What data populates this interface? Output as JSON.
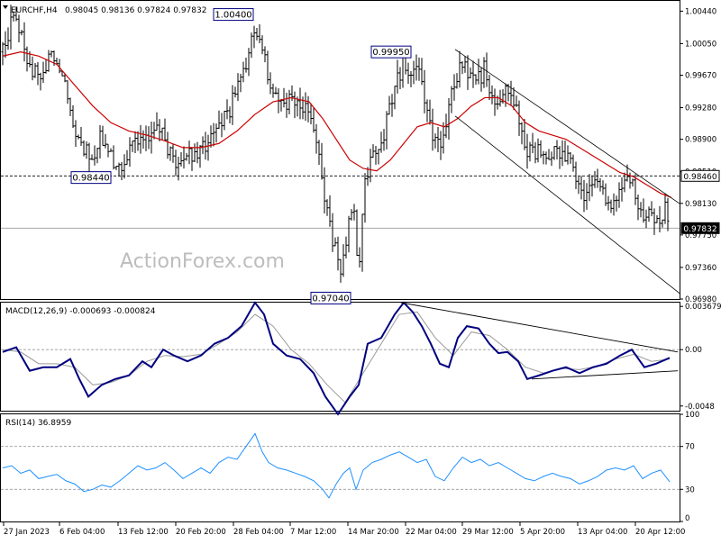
{
  "header": {
    "symbol": "EURCHF,H4",
    "ohlc": "0.98045 0.98136 0.97824 0.97832"
  },
  "watermark": "ActionForex.com",
  "chart_data": [
    {
      "type": "candlestick",
      "title": "EURCHF,H4",
      "ylim": [
        0.9698,
        1.0052
      ],
      "y_ticks": [
        "1.00440",
        "1.00050",
        "0.99670",
        "0.99280",
        "0.98900",
        "0.98510",
        "0.98130",
        "0.97750",
        "0.97360",
        "0.96980"
      ],
      "x_ticks": [
        "27 Jan 2023",
        "6 Feb 04:00",
        "13 Feb 12:00",
        "20 Feb 20:00",
        "28 Feb 04:00",
        "7 Mar 12:00",
        "14 Mar 20:00",
        "22 Mar 04:00",
        "29 Mar 12:00",
        "5 Apr 20:00",
        "13 Apr 04:00",
        "20 Apr 12:00"
      ],
      "price_path": [
        [
          0,
          0.9995
        ],
        [
          10,
          1.003
        ],
        [
          20,
          1.002
        ],
        [
          30,
          0.9975
        ],
        [
          40,
          0.9965
        ],
        [
          50,
          0.9985
        ],
        [
          60,
          0.999
        ],
        [
          70,
          0.996
        ],
        [
          80,
          0.9905
        ],
        [
          90,
          0.988
        ],
        [
          100,
          0.987
        ],
        [
          110,
          0.9895
        ],
        [
          120,
          0.987
        ],
        [
          130,
          0.986
        ],
        [
          140,
          0.9875
        ],
        [
          150,
          0.9895
        ],
        [
          160,
          0.9885
        ],
        [
          170,
          0.99
        ],
        [
          180,
          0.989
        ],
        [
          190,
          0.9865
        ],
        [
          200,
          0.9865
        ],
        [
          210,
          0.987
        ],
        [
          220,
          0.988
        ],
        [
          230,
          0.989
        ],
        [
          240,
          0.9905
        ],
        [
          250,
          0.992
        ],
        [
          260,
          0.9955
        ],
        [
          270,
          0.998
        ],
        [
          280,
          1.0025
        ],
        [
          288,
          1.0
        ],
        [
          295,
          0.996
        ],
        [
          305,
          0.994
        ],
        [
          315,
          0.9935
        ],
        [
          325,
          0.9935
        ],
        [
          335,
          0.9925
        ],
        [
          345,
          0.99
        ],
        [
          352,
          0.986
        ],
        [
          360,
          0.98
        ],
        [
          368,
          0.976
        ],
        [
          375,
          0.973
        ],
        [
          382,
          0.978
        ],
        [
          390,
          0.981
        ],
        [
          395,
          0.972
        ],
        [
          400,
          0.983
        ],
        [
          408,
          0.987
        ],
        [
          415,
          0.987
        ],
        [
          422,
          0.9895
        ],
        [
          430,
          0.993
        ],
        [
          438,
          0.9965
        ],
        [
          445,
          0.998
        ],
        [
          452,
          0.996
        ],
        [
          460,
          0.9985
        ],
        [
          468,
          0.993
        ],
        [
          475,
          0.99
        ],
        [
          482,
          0.988
        ],
        [
          490,
          0.989
        ],
        [
          498,
          0.994
        ],
        [
          505,
          0.997
        ],
        [
          512,
          0.9975
        ],
        [
          520,
          0.997
        ],
        [
          527,
          0.996
        ],
        [
          535,
          0.9975
        ],
        [
          542,
          0.994
        ],
        [
          550,
          0.993
        ],
        [
          557,
          0.9945
        ],
        [
          565,
          0.995
        ],
        [
          572,
          0.991
        ],
        [
          580,
          0.988
        ],
        [
          588,
          0.987
        ],
        [
          595,
          0.9875
        ],
        [
          605,
          0.987
        ],
        [
          615,
          0.988
        ],
        [
          622,
          0.9875
        ],
        [
          630,
          0.986
        ],
        [
          638,
          0.9845
        ],
        [
          645,
          0.982
        ],
        [
          652,
          0.983
        ],
        [
          660,
          0.9835
        ],
        [
          668,
          0.982
        ],
        [
          675,
          0.981
        ],
        [
          682,
          0.9825
        ],
        [
          690,
          0.984
        ],
        [
          698,
          0.9835
        ],
        [
          705,
          0.9815
        ],
        [
          712,
          0.9795
        ],
        [
          720,
          0.98
        ],
        [
          728,
          0.979
        ],
        [
          735,
          0.9805
        ],
        [
          740,
          0.98
        ]
      ],
      "ma_path": [
        [
          0,
          0.999
        ],
        [
          20,
          0.9995
        ],
        [
          40,
          0.999
        ],
        [
          60,
          0.998
        ],
        [
          80,
          0.9955
        ],
        [
          100,
          0.993
        ],
        [
          120,
          0.991
        ],
        [
          140,
          0.99
        ],
        [
          160,
          0.9895
        ],
        [
          180,
          0.9888
        ],
        [
          200,
          0.988
        ],
        [
          220,
          0.988
        ],
        [
          240,
          0.9885
        ],
        [
          260,
          0.99
        ],
        [
          280,
          0.992
        ],
        [
          300,
          0.9935
        ],
        [
          320,
          0.994
        ],
        [
          340,
          0.9935
        ],
        [
          355,
          0.9915
        ],
        [
          370,
          0.989
        ],
        [
          385,
          0.9865
        ],
        [
          400,
          0.9855
        ],
        [
          415,
          0.9852
        ],
        [
          430,
          0.9865
        ],
        [
          445,
          0.9885
        ],
        [
          460,
          0.9905
        ],
        [
          475,
          0.991
        ],
        [
          490,
          0.9905
        ],
        [
          505,
          0.9915
        ],
        [
          520,
          0.993
        ],
        [
          535,
          0.994
        ],
        [
          550,
          0.994
        ],
        [
          565,
          0.993
        ],
        [
          580,
          0.991
        ],
        [
          595,
          0.99
        ],
        [
          610,
          0.9895
        ],
        [
          625,
          0.989
        ],
        [
          640,
          0.988
        ],
        [
          655,
          0.987
        ],
        [
          670,
          0.986
        ],
        [
          685,
          0.985
        ],
        [
          700,
          0.9845
        ],
        [
          715,
          0.9835
        ],
        [
          730,
          0.9825
        ],
        [
          742,
          0.982
        ]
      ],
      "channel_upper": [
        [
          505,
          0.9998
        ],
        [
          755,
          0.9812
        ]
      ],
      "channel_lower": [
        [
          505,
          0.9918
        ],
        [
          755,
          0.9704
        ]
      ],
      "hline_dashed": 0.9846,
      "hline_current": 0.97832,
      "price_labels": [
        {
          "text": "1.00400",
          "x": 283,
          "y": 1.004
        },
        {
          "text": "0.99950",
          "x": 462,
          "y": 0.9995
        },
        {
          "text": "0.98440",
          "x": 125,
          "y": 0.9844
        },
        {
          "text": "0.97040",
          "x": 393,
          "y": 0.9704
        }
      ],
      "axis_tags": [
        {
          "text": "0.98460",
          "value": 0.9846,
          "style": "outline"
        },
        {
          "text": "0.97832",
          "value": 0.97832,
          "style": "filled"
        }
      ],
      "colors": {
        "bars": "#000000",
        "ma": "#cc0000",
        "channel": "#000000"
      }
    },
    {
      "type": "line",
      "title": "MACD(12,26,9) -0.000693 -0.000824",
      "ylim": [
        -0.0052,
        0.004
      ],
      "y_ticks": [
        "0.003679",
        "0.00",
        "-0.0048"
      ],
      "zero_tag": "0.00",
      "macd_path": [
        [
          0,
          -0.0002
        ],
        [
          15,
          0.0002
        ],
        [
          30,
          -0.0018
        ],
        [
          45,
          -0.0015
        ],
        [
          60,
          -0.0015
        ],
        [
          75,
          -0.0008
        ],
        [
          85,
          -0.0025
        ],
        [
          95,
          -0.004
        ],
        [
          110,
          -0.003
        ],
        [
          125,
          -0.0025
        ],
        [
          140,
          -0.0022
        ],
        [
          155,
          -0.001
        ],
        [
          165,
          -0.0015
        ],
        [
          178,
          0.0
        ],
        [
          190,
          -0.0005
        ],
        [
          205,
          -0.001
        ],
        [
          220,
          -0.0005
        ],
        [
          235,
          0.0005
        ],
        [
          250,
          0.001
        ],
        [
          265,
          0.002
        ],
        [
          280,
          0.004
        ],
        [
          290,
          0.003
        ],
        [
          300,
          0.0005
        ],
        [
          315,
          -0.0005
        ],
        [
          330,
          -0.0008
        ],
        [
          345,
          -0.002
        ],
        [
          358,
          -0.004
        ],
        [
          372,
          -0.0055
        ],
        [
          385,
          -0.004
        ],
        [
          395,
          -0.003
        ],
        [
          405,
          0.0005
        ],
        [
          420,
          0.001
        ],
        [
          435,
          0.003
        ],
        [
          445,
          0.004
        ],
        [
          455,
          0.0032
        ],
        [
          465,
          0.002
        ],
        [
          475,
          0.0005
        ],
        [
          485,
          -0.0012
        ],
        [
          495,
          -0.0015
        ],
        [
          505,
          0.001
        ],
        [
          515,
          0.002
        ],
        [
          528,
          0.0018
        ],
        [
          540,
          0.0005
        ],
        [
          550,
          -0.0003
        ],
        [
          560,
          -0.0002
        ],
        [
          572,
          -0.001
        ],
        [
          582,
          -0.0025
        ],
        [
          595,
          -0.0022
        ],
        [
          610,
          -0.0018
        ],
        [
          625,
          -0.0015
        ],
        [
          640,
          -0.002
        ],
        [
          655,
          -0.0015
        ],
        [
          670,
          -0.0012
        ],
        [
          685,
          -0.0005
        ],
        [
          698,
          0.0
        ],
        [
          712,
          -0.0015
        ],
        [
          725,
          -0.0012
        ],
        [
          740,
          -0.0007
        ]
      ],
      "signal_path": [
        [
          0,
          0.0
        ],
        [
          20,
          -0.0002
        ],
        [
          40,
          -0.0012
        ],
        [
          60,
          -0.0012
        ],
        [
          80,
          -0.0015
        ],
        [
          100,
          -0.003
        ],
        [
          120,
          -0.0028
        ],
        [
          140,
          -0.0022
        ],
        [
          160,
          -0.001
        ],
        [
          180,
          -0.0005
        ],
        [
          200,
          -0.0006
        ],
        [
          220,
          -0.0004
        ],
        [
          240,
          0.0005
        ],
        [
          260,
          0.0015
        ],
        [
          280,
          0.003
        ],
        [
          300,
          0.002
        ],
        [
          320,
          0.0
        ],
        [
          340,
          -0.0012
        ],
        [
          360,
          -0.003
        ],
        [
          380,
          -0.0045
        ],
        [
          400,
          -0.002
        ],
        [
          420,
          0.0005
        ],
        [
          440,
          0.003
        ],
        [
          460,
          0.0032
        ],
        [
          480,
          0.001
        ],
        [
          500,
          -0.0005
        ],
        [
          520,
          0.0015
        ],
        [
          540,
          0.0012
        ],
        [
          560,
          0.0
        ],
        [
          580,
          -0.0015
        ],
        [
          600,
          -0.002
        ],
        [
          620,
          -0.0016
        ],
        [
          640,
          -0.0017
        ],
        [
          660,
          -0.0014
        ],
        [
          680,
          -0.0008
        ],
        [
          700,
          -0.0004
        ],
        [
          720,
          -0.001
        ],
        [
          740,
          -0.0008
        ]
      ],
      "trend_upper": [
        [
          445,
          0.004
        ],
        [
          752,
          -0.0002
        ]
      ],
      "trend_lower": [
        [
          590,
          -0.0025
        ],
        [
          752,
          -0.0018
        ]
      ]
    },
    {
      "type": "line",
      "title": "RSI(14) 36.8959",
      "ylim": [
        0,
        100
      ],
      "y_ticks": [
        "100",
        "70",
        "30",
        "0"
      ],
      "levels": [
        70,
        30
      ],
      "rsi_path": [
        [
          0,
          50
        ],
        [
          10,
          52
        ],
        [
          20,
          45
        ],
        [
          30,
          48
        ],
        [
          40,
          40
        ],
        [
          50,
          42
        ],
        [
          60,
          44
        ],
        [
          70,
          38
        ],
        [
          80,
          35
        ],
        [
          90,
          28
        ],
        [
          100,
          30
        ],
        [
          110,
          34
        ],
        [
          120,
          32
        ],
        [
          130,
          38
        ],
        [
          140,
          45
        ],
        [
          150,
          52
        ],
        [
          160,
          48
        ],
        [
          170,
          50
        ],
        [
          180,
          55
        ],
        [
          190,
          48
        ],
        [
          200,
          40
        ],
        [
          210,
          45
        ],
        [
          220,
          50
        ],
        [
          230,
          45
        ],
        [
          240,
          55
        ],
        [
          250,
          60
        ],
        [
          260,
          58
        ],
        [
          270,
          70
        ],
        [
          280,
          82
        ],
        [
          288,
          65
        ],
        [
          295,
          55
        ],
        [
          305,
          50
        ],
        [
          315,
          48
        ],
        [
          325,
          45
        ],
        [
          335,
          42
        ],
        [
          345,
          38
        ],
        [
          355,
          30
        ],
        [
          362,
          22
        ],
        [
          370,
          35
        ],
        [
          378,
          45
        ],
        [
          385,
          50
        ],
        [
          392,
          30
        ],
        [
          400,
          48
        ],
        [
          410,
          55
        ],
        [
          420,
          58
        ],
        [
          430,
          62
        ],
        [
          440,
          65
        ],
        [
          450,
          60
        ],
        [
          460,
          55
        ],
        [
          470,
          58
        ],
        [
          480,
          42
        ],
        [
          490,
          38
        ],
        [
          500,
          50
        ],
        [
          510,
          60
        ],
        [
          520,
          55
        ],
        [
          530,
          58
        ],
        [
          540,
          52
        ],
        [
          550,
          55
        ],
        [
          560,
          50
        ],
        [
          570,
          45
        ],
        [
          580,
          40
        ],
        [
          590,
          38
        ],
        [
          600,
          42
        ],
        [
          610,
          45
        ],
        [
          620,
          42
        ],
        [
          630,
          40
        ],
        [
          640,
          35
        ],
        [
          650,
          38
        ],
        [
          660,
          42
        ],
        [
          670,
          48
        ],
        [
          680,
          50
        ],
        [
          690,
          48
        ],
        [
          700,
          52
        ],
        [
          710,
          40
        ],
        [
          720,
          45
        ],
        [
          730,
          48
        ],
        [
          740,
          37
        ]
      ]
    }
  ]
}
